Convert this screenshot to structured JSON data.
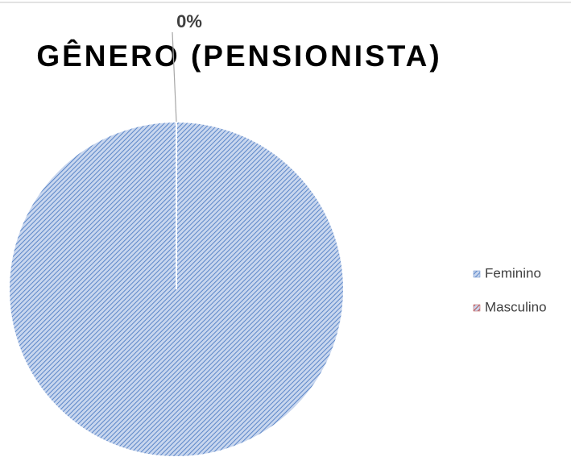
{
  "chart_data": {
    "type": "pie",
    "title": "GÊNERO (PENSIONISTA)",
    "categories": [
      "Feminino",
      "Masculino"
    ],
    "values": [
      100,
      0
    ],
    "value_labels": [
      null,
      "0%"
    ],
    "colors": [
      "#5b86c8",
      "#c0504d"
    ],
    "legend": "right"
  }
}
